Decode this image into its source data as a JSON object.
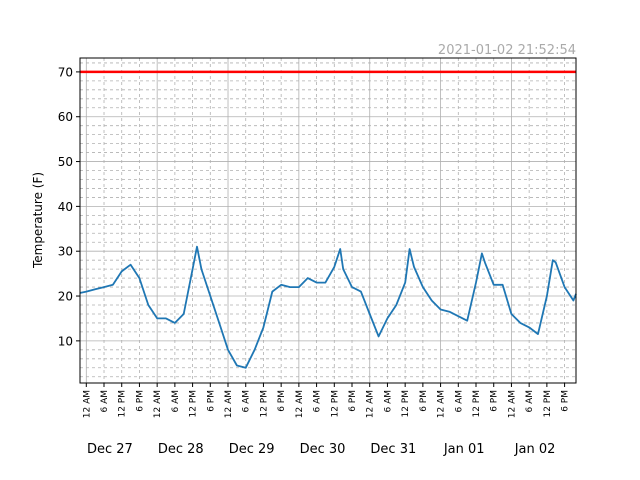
{
  "chart_data": {
    "type": "line",
    "annotation": "2021-01-02 21:52:54",
    "y_label": "Temperature (F)",
    "xlim": [
      "Dec 26 21:52",
      "Jan 02 21:52"
    ],
    "ylim": [
      0.6,
      73.1
    ],
    "yticks": [
      10,
      20,
      30,
      40,
      50,
      60,
      70
    ],
    "yminorticks": [
      2,
      4,
      6,
      8,
      12,
      14,
      16,
      18,
      22,
      24,
      26,
      28,
      32,
      34,
      36,
      38,
      42,
      44,
      46,
      48,
      52,
      54,
      56,
      58,
      62,
      64,
      66,
      68,
      72
    ],
    "xticks": [
      {
        "value": "Dec 27 00:00",
        "label": "12 AM"
      },
      {
        "value": "Dec 27 06:00",
        "label": "6 AM"
      },
      {
        "value": "Dec 27 12:00",
        "label": "12 PM"
      },
      {
        "value": "Dec 27 18:00",
        "label": "6 PM"
      },
      {
        "value": "Dec 28 00:00",
        "label": "12 AM"
      },
      {
        "value": "Dec 28 06:00",
        "label": "6 AM"
      },
      {
        "value": "Dec 28 12:00",
        "label": "12 PM"
      },
      {
        "value": "Dec 28 18:00",
        "label": "6 PM"
      },
      {
        "value": "Dec 29 00:00",
        "label": "12 AM"
      },
      {
        "value": "Dec 29 06:00",
        "label": "6 AM"
      },
      {
        "value": "Dec 29 12:00",
        "label": "12 PM"
      },
      {
        "value": "Dec 29 18:00",
        "label": "6 PM"
      },
      {
        "value": "Dec 30 00:00",
        "label": "12 AM"
      },
      {
        "value": "Dec 30 06:00",
        "label": "6 AM"
      },
      {
        "value": "Dec 30 12:00",
        "label": "12 PM"
      },
      {
        "value": "Dec 30 18:00",
        "label": "6 PM"
      },
      {
        "value": "Dec 31 00:00",
        "label": "12 AM"
      },
      {
        "value": "Dec 31 06:00",
        "label": "6 AM"
      },
      {
        "value": "Dec 31 12:00",
        "label": "12 PM"
      },
      {
        "value": "Dec 31 18:00",
        "label": "6 PM"
      },
      {
        "value": "Jan 01 00:00",
        "label": "12 AM"
      },
      {
        "value": "Jan 01 06:00",
        "label": "6 AM"
      },
      {
        "value": "Jan 01 12:00",
        "label": "12 PM"
      },
      {
        "value": "Jan 01 18:00",
        "label": "6 PM"
      },
      {
        "value": "Jan 02 00:00",
        "label": "12 AM"
      },
      {
        "value": "Jan 02 06:00",
        "label": "6 AM"
      },
      {
        "value": "Jan 02 12:00",
        "label": "12 PM"
      },
      {
        "value": "Jan 02 18:00",
        "label": "6 PM"
      }
    ],
    "day_labels": [
      {
        "value": "Dec 27 08:00",
        "label": "Dec 27"
      },
      {
        "value": "Dec 28 08:00",
        "label": "Dec 28"
      },
      {
        "value": "Dec 29 08:00",
        "label": "Dec 29"
      },
      {
        "value": "Dec 30 08:00",
        "label": "Dec 30"
      },
      {
        "value": "Dec 31 08:00",
        "label": "Dec 31"
      },
      {
        "value": "Jan 01 08:00",
        "label": "Jan 01"
      },
      {
        "value": "Jan 02 08:00",
        "label": "Jan 02"
      }
    ],
    "grid": true,
    "threshold": 70,
    "threshold_color": "#ff0000",
    "x": [
      "Dec 26 22:00",
      "Dec 27 00:00",
      "Dec 27 03:00",
      "Dec 27 06:00",
      "Dec 27 09:00",
      "Dec 27 12:00",
      "Dec 27 15:00",
      "Dec 27 18:00",
      "Dec 27 21:00",
      "Dec 28 00:00",
      "Dec 28 03:00",
      "Dec 28 06:00",
      "Dec 28 09:00",
      "Dec 28 12:00",
      "Dec 28 13:30",
      "Dec 28 15:00",
      "Dec 28 18:00",
      "Dec 28 21:00",
      "Dec 29 00:00",
      "Dec 29 03:00",
      "Dec 29 06:00",
      "Dec 29 09:00",
      "Dec 29 12:00",
      "Dec 29 15:00",
      "Dec 29 18:00",
      "Dec 29 21:00",
      "Dec 30 00:00",
      "Dec 30 03:00",
      "Dec 30 06:00",
      "Dec 30 09:00",
      "Dec 30 12:00",
      "Dec 30 14:00",
      "Dec 30 15:00",
      "Dec 30 18:00",
      "Dec 30 21:00",
      "Dec 31 00:00",
      "Dec 31 03:00",
      "Dec 31 06:00",
      "Dec 31 09:00",
      "Dec 31 12:00",
      "Dec 31 13:30",
      "Dec 31 15:00",
      "Dec 31 18:00",
      "Dec 31 21:00",
      "Jan 01 00:00",
      "Jan 01 03:00",
      "Jan 01 06:00",
      "Jan 01 09:00",
      "Jan 01 12:00",
      "Jan 01 14:00",
      "Jan 01 15:00",
      "Jan 01 18:00",
      "Jan 01 21:00",
      "Jan 02 00:00",
      "Jan 02 03:00",
      "Jan 02 06:00",
      "Jan 02 09:00",
      "Jan 02 12:00",
      "Jan 02 14:00",
      "Jan 02 15:00",
      "Jan 02 18:00",
      "Jan 02 21:00",
      "Jan 02 21:52"
    ],
    "series": [
      {
        "color": "#1f77b4",
        "values": [
          20.7,
          21,
          21.5,
          22,
          22.5,
          25.5,
          27,
          24,
          18,
          15,
          15,
          14,
          16,
          26,
          31,
          26,
          20,
          14,
          8,
          4.5,
          4,
          8,
          13,
          21,
          22.5,
          22,
          22,
          24,
          23,
          23,
          26.5,
          30.5,
          26,
          22,
          21,
          16,
          11,
          15,
          18,
          23,
          30.5,
          26.5,
          22,
          19,
          17,
          16.5,
          15.5,
          14.5,
          23,
          29.5,
          27.5,
          22.5,
          22.5,
          16,
          14,
          13,
          11.5,
          20,
          28,
          27.5,
          22,
          19,
          20.5
        ]
      }
    ]
  }
}
